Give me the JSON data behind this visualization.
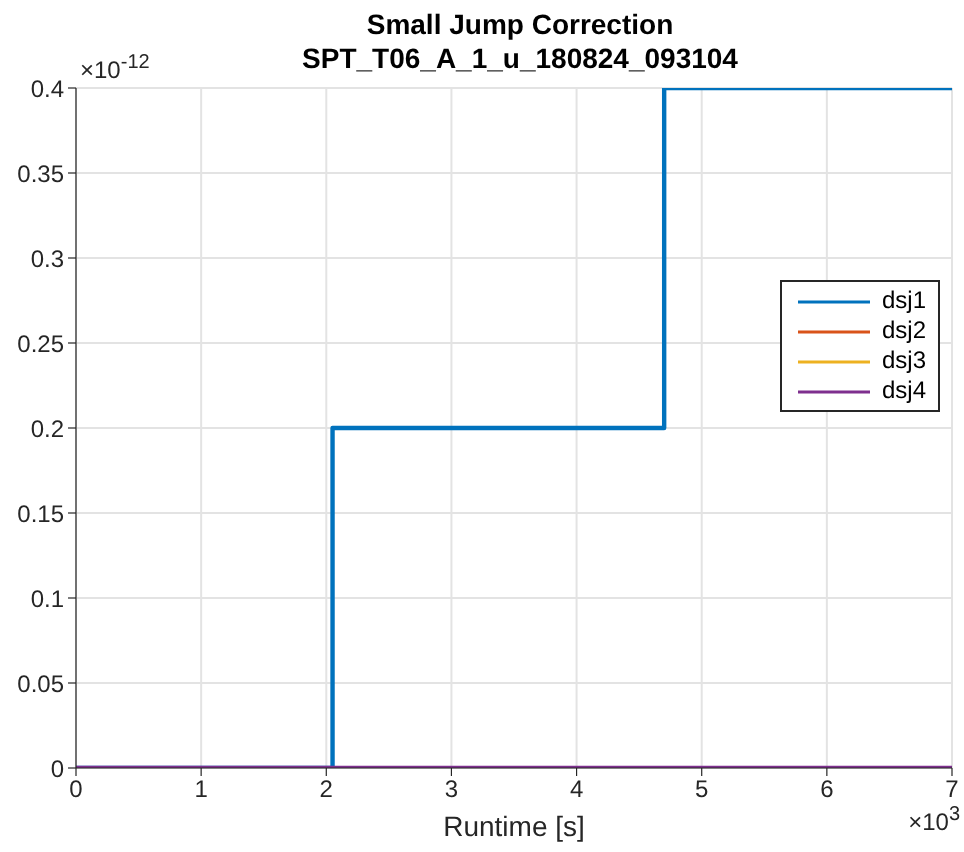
{
  "chart_data": {
    "type": "step",
    "title": "Small Jump Correction",
    "subtitle": "SPT_T06_A_1_u_180824_093104",
    "xlabel": "Runtime [s]",
    "annotations": [
      "×10$^{-12}$",
      "×10$^{3}$"
    ],
    "series": [
      {
        "name": "dsj1",
        "color": "#0072bd",
        "x": [
          0,
          2.05,
          4.7,
          7
        ],
        "values": [
          0,
          0.2,
          0.4,
          0.4
        ]
      },
      {
        "name": "dsj2",
        "color": "#d95319"
      },
      {
        "name": "dsj3",
        "color": "#edb120"
      },
      {
        "name": "dsj4",
        "color": "#7e2f8e",
        "x": [
          0,
          7
        ],
        "values": [
          0,
          0
        ]
      }
    ],
    "xlim": [
      0,
      7
    ],
    "xticks": [
      0,
      1,
      2,
      3,
      4,
      5,
      6,
      7
    ],
    "ylim": [
      0,
      0.4
    ],
    "yticks": [
      0,
      0.05,
      0.1,
      0.15,
      0.2,
      0.25,
      0.3,
      0.35,
      0.4
    ],
    "grid": true,
    "legend": "right",
    "line_style": "solid",
    "marker": "none"
  }
}
